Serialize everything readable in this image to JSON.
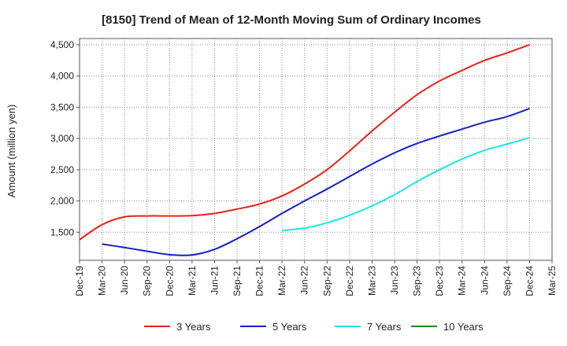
{
  "chart_data": {
    "type": "line",
    "title": "[8150]  Trend of Mean of 12-Month Moving Sum of Ordinary Incomes",
    "xlabel": "",
    "ylabel": "Amount (million yen)",
    "ylim": [
      1050,
      4600
    ],
    "yticks": [
      1500,
      2000,
      2500,
      3000,
      3500,
      4000,
      4500
    ],
    "ytick_labels": [
      "1,500",
      "2,000",
      "2,500",
      "3,000",
      "3,500",
      "4,000",
      "4,500"
    ],
    "xticks": [
      "Dec-19",
      "Mar-20",
      "Jun-20",
      "Sep-20",
      "Dec-20",
      "Mar-21",
      "Jun-21",
      "Sep-21",
      "Dec-21",
      "Mar-22",
      "Jun-22",
      "Sep-22",
      "Dec-22",
      "Mar-23",
      "Jun-23",
      "Sep-23",
      "Dec-23",
      "Mar-24",
      "Jun-24",
      "Sep-24",
      "Dec-24",
      "Mar-25"
    ],
    "x": [
      "Dec-19",
      "Mar-20",
      "Jun-20",
      "Sep-20",
      "Dec-20",
      "Mar-21",
      "Jun-21",
      "Sep-21",
      "Dec-21",
      "Mar-22",
      "Jun-22",
      "Sep-22",
      "Dec-22",
      "Mar-23",
      "Jun-23",
      "Sep-23",
      "Dec-23",
      "Mar-24",
      "Jun-24",
      "Sep-24",
      "Dec-24"
    ],
    "grid": true,
    "series": [
      {
        "name": "3 Years",
        "color": "#e8221c",
        "values": [
          1380,
          1620,
          1745,
          1760,
          1760,
          1765,
          1800,
          1870,
          1950,
          2080,
          2270,
          2500,
          2800,
          3120,
          3420,
          3700,
          3920,
          4090,
          4250,
          4370,
          4500
        ]
      },
      {
        "name": "5 Years",
        "color": "#1420c8",
        "values": [
          null,
          1310,
          1255,
          1195,
          1140,
          1135,
          1225,
          1395,
          1590,
          1800,
          2000,
          2190,
          2390,
          2590,
          2770,
          2920,
          3040,
          3150,
          3260,
          3350,
          3480
        ]
      },
      {
        "name": "7 Years",
        "color": "#19e8e8",
        "values": [
          null,
          null,
          null,
          null,
          null,
          null,
          null,
          null,
          null,
          1525,
          1565,
          1650,
          1770,
          1920,
          2100,
          2310,
          2500,
          2670,
          2810,
          2910,
          3015
        ]
      },
      {
        "name": "10 Years",
        "color": "#1a8a1a",
        "values": [
          null,
          null,
          null,
          null,
          null,
          null,
          null,
          null,
          null,
          null,
          null,
          null,
          null,
          null,
          null,
          null,
          null,
          null,
          null,
          null,
          null
        ]
      }
    ]
  }
}
